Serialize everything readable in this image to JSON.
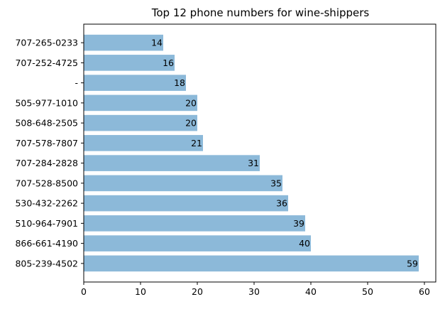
{
  "chart_data": {
    "type": "bar",
    "orientation": "horizontal",
    "title": "Top 12 phone numbers for wine-shippers",
    "xlabel": "",
    "ylabel": "",
    "categories": [
      "805-239-4502",
      "866-661-4190",
      "510-964-7901",
      "530-432-2262",
      "707-528-8500",
      "707-284-2828",
      "707-578-7807",
      "508-648-2505",
      "505-977-1010",
      "-",
      "707-252-4725",
      "707-265-0233"
    ],
    "values": [
      59,
      40,
      39,
      36,
      35,
      31,
      21,
      20,
      20,
      18,
      16,
      14
    ],
    "xlim": [
      0,
      62
    ],
    "xticks": [
      0,
      10,
      20,
      30,
      40,
      50,
      60
    ],
    "grid": false,
    "legend": "none",
    "bar_color": "#8cb9d9"
  }
}
